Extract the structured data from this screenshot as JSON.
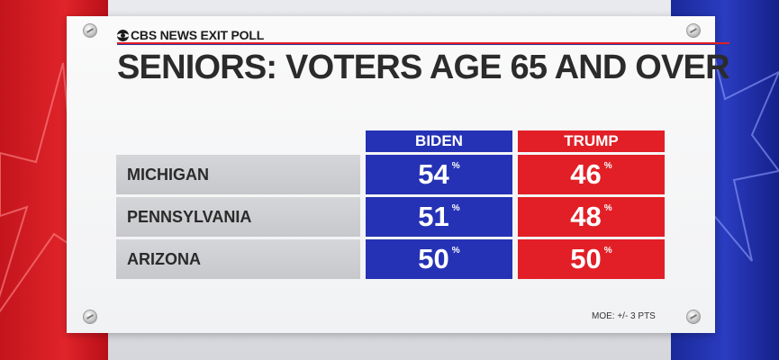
{
  "brand": {
    "name": "CBS NEWS EXIT POLL"
  },
  "title": "SENIORS: VOTERS AGE 65 AND OVER",
  "columns": {
    "biden": "BIDEN",
    "trump": "TRUMP"
  },
  "rows": [
    {
      "state": "MICHIGAN",
      "biden": "54",
      "trump": "46"
    },
    {
      "state": "PENNSYLVANIA",
      "biden": "51",
      "trump": "48"
    },
    {
      "state": "ARIZONA",
      "biden": "50",
      "trump": "50"
    }
  ],
  "percent_sign": "%",
  "moe": "MOE: +/- 3 PTS",
  "colors": {
    "biden": "#2632b5",
    "trump": "#e21f26",
    "label_bg": "#cfd0d3"
  }
}
